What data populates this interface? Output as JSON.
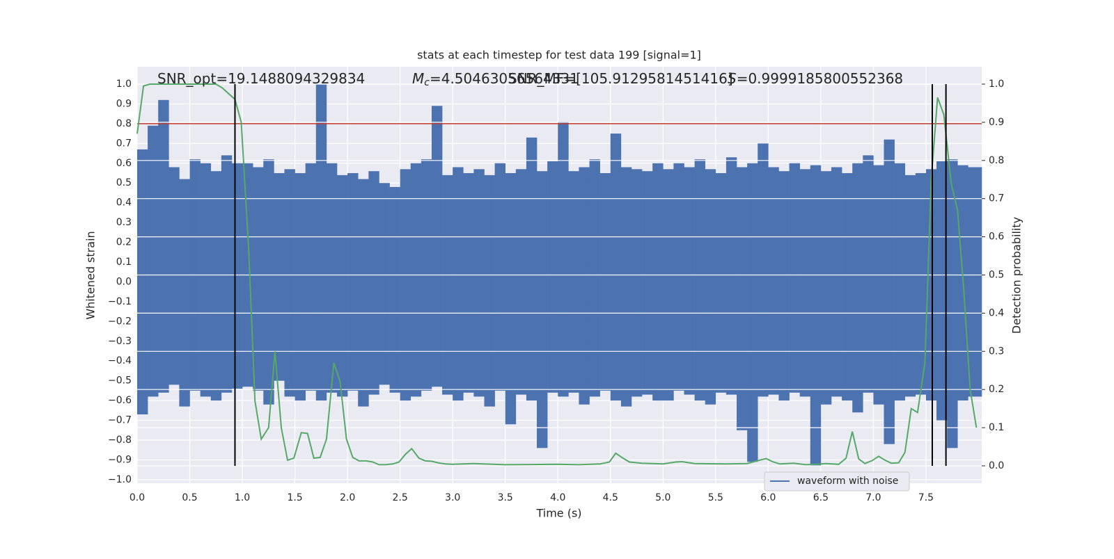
{
  "chart_data": {
    "type": "line",
    "title": "stats at each timestep for test data 199 [signal=1]",
    "xlabel": "Time (s)",
    "ylabel": "Whitened strain",
    "y2label": "Detection probability",
    "annotations": [
      {
        "text": "SNR_opt=19.1488094329834"
      },
      {
        "symbol": "M",
        "subscript": "c",
        "text": "=4.50463056564331"
      },
      {
        "text": "SNR_MF=[105.9129581451416]"
      },
      {
        "symbol": "S",
        "text": "=0.9999185800552368"
      }
    ],
    "xlim": [
      0,
      8.03
    ],
    "ylim": [
      -1.018,
      1.088
    ],
    "y2lim": [
      -0.0455,
      1.0455
    ],
    "grid": true,
    "legend": "lower right",
    "xticks": [
      {
        "value": 0,
        "label": "0.0"
      },
      0.5,
      {
        "value": 1,
        "label": "1.0"
      },
      1.5,
      {
        "value": 2,
        "label": "2.0"
      },
      2.5,
      {
        "value": 3,
        "label": "3.0"
      },
      3.5,
      {
        "value": 4,
        "label": "4.0"
      },
      4.5,
      {
        "value": 5,
        "label": "5.0"
      },
      5.5,
      {
        "value": 6,
        "label": "6.0"
      },
      6.5,
      {
        "value": 7,
        "label": "7.0"
      },
      7.5
    ],
    "yticks": [
      {
        "value": -1,
        "label": "−1.0"
      },
      {
        "value": -0.9,
        "label": "−0.9"
      },
      {
        "value": -0.8,
        "label": "−0.8"
      },
      {
        "value": -0.7,
        "label": "−0.7"
      },
      {
        "value": -0.6,
        "label": "−0.6"
      },
      {
        "value": -0.5,
        "label": "−0.5"
      },
      {
        "value": -0.4,
        "label": "−0.4"
      },
      {
        "value": -0.3,
        "label": "−0.3"
      },
      {
        "value": -0.2,
        "label": "−0.2"
      },
      {
        "value": -0.1,
        "label": "−0.1"
      },
      {
        "value": 0,
        "label": "0.0"
      },
      0.1,
      0.2,
      0.3,
      0.4,
      0.5,
      0.6,
      0.7,
      0.8,
      0.9,
      {
        "value": 1,
        "label": "1.0"
      }
    ],
    "y2ticks": [
      {
        "value": 0,
        "label": "0.0"
      },
      0.1,
      0.2,
      0.3,
      0.4,
      0.5,
      0.6,
      0.7,
      0.8,
      0.9,
      {
        "value": 1,
        "label": "1.0"
      }
    ],
    "series": [
      {
        "name": "waveform with noise",
        "color": "#4c72b0",
        "x": [
          0,
          0.1,
          0.2,
          0.3,
          0.4,
          0.5,
          0.6,
          0.7,
          0.8,
          0.9,
          1,
          1.1,
          1.2,
          1.3,
          1.4,
          1.5,
          1.6,
          1.7,
          1.8,
          1.9,
          2,
          2.1,
          2.2,
          2.3,
          2.4,
          2.5,
          2.6,
          2.7,
          2.8,
          2.9,
          3,
          3.1,
          3.2,
          3.3,
          3.4,
          3.5,
          3.6,
          3.7,
          3.8,
          3.9,
          4,
          4.1,
          4.2,
          4.3,
          4.4,
          4.5,
          4.6,
          4.7,
          4.8,
          4.9,
          5,
          5.1,
          5.2,
          5.3,
          5.4,
          5.5,
          5.6,
          5.7,
          5.8,
          5.9,
          6,
          6.1,
          6.2,
          6.3,
          6.4,
          6.5,
          6.6,
          6.7,
          6.8,
          6.9,
          7,
          7.1,
          7.2,
          7.3,
          7.4,
          7.5,
          7.6,
          7.7,
          7.8,
          7.9
        ],
        "max": [
          0.67,
          0.79,
          0.92,
          0.58,
          0.52,
          0.62,
          0.6,
          0.56,
          0.64,
          0.6,
          0.6,
          0.58,
          0.62,
          0.55,
          0.57,
          0.55,
          0.6,
          1.0,
          0.6,
          0.54,
          0.55,
          0.52,
          0.56,
          0.5,
          0.48,
          0.57,
          0.6,
          0.62,
          0.89,
          0.54,
          0.58,
          0.55,
          0.57,
          0.54,
          0.6,
          0.55,
          0.57,
          0.73,
          0.56,
          0.61,
          0.81,
          0.56,
          0.58,
          0.62,
          0.55,
          0.75,
          0.58,
          0.57,
          0.56,
          0.6,
          0.57,
          0.6,
          0.58,
          0.62,
          0.57,
          0.55,
          0.63,
          0.58,
          0.6,
          0.7,
          0.58,
          0.56,
          0.6,
          0.57,
          0.59,
          0.56,
          0.58,
          0.55,
          0.6,
          0.64,
          0.59,
          0.72,
          0.6,
          0.54,
          0.55,
          0.57,
          0.61,
          0.62,
          0.59,
          0.58
        ],
        "min": [
          -0.67,
          -0.58,
          -0.56,
          -0.52,
          -0.63,
          -0.55,
          -0.58,
          -0.6,
          -0.56,
          -0.54,
          -0.53,
          -0.55,
          -0.62,
          -0.5,
          -0.58,
          -0.6,
          -0.55,
          -0.6,
          -0.56,
          -0.58,
          -0.55,
          -0.63,
          -0.57,
          -0.52,
          -0.56,
          -0.6,
          -0.58,
          -0.55,
          -0.53,
          -0.57,
          -0.6,
          -0.56,
          -0.58,
          -0.63,
          -0.55,
          -0.72,
          -0.57,
          -0.6,
          -0.84,
          -0.56,
          -0.58,
          -0.56,
          -0.62,
          -0.58,
          -0.55,
          -0.6,
          -0.63,
          -0.58,
          -0.57,
          -0.6,
          -0.6,
          -0.55,
          -0.57,
          -0.6,
          -0.62,
          -0.56,
          -0.57,
          -0.75,
          -0.91,
          -0.58,
          -0.57,
          -0.6,
          -0.56,
          -0.58,
          -0.93,
          -0.62,
          -0.58,
          -0.6,
          -0.66,
          -0.56,
          -0.62,
          -0.82,
          -0.6,
          -0.58,
          -0.57,
          -0.6,
          -0.7,
          -0.84,
          -0.6,
          -0.58
        ]
      }
    ],
    "probability": {
      "axis": "y2",
      "color": "#55a868",
      "x": [
        0,
        0.06,
        0.12,
        0.75,
        0.81,
        0.87,
        0.93,
        0.99,
        1.06,
        1.12,
        1.18,
        1.25,
        1.31,
        1.37,
        1.43,
        1.49,
        1.56,
        1.62,
        1.68,
        1.74,
        1.8,
        1.87,
        1.93,
        1.99,
        2.05,
        2.11,
        2.18,
        2.24,
        2.3,
        2.36,
        2.43,
        2.49,
        2.55,
        2.61,
        2.68,
        2.74,
        2.8,
        2.86,
        2.93,
        3,
        3.2,
        3.5,
        4,
        4.2,
        4.4,
        4.49,
        4.55,
        4.62,
        4.68,
        4.8,
        5,
        5.12,
        5.18,
        5.3,
        5.6,
        5.8,
        5.92,
        5.98,
        6.05,
        6.11,
        6.24,
        6.36,
        6.5,
        6.55,
        6.67,
        6.74,
        6.8,
        6.86,
        6.92,
        6.99,
        7.05,
        7.11,
        7.17,
        7.24,
        7.3,
        7.36,
        7.42,
        7.49,
        7.55,
        7.61,
        7.67,
        7.74,
        7.8,
        7.86,
        7.92,
        7.98
      ],
      "values": [
        0.87,
        0.995,
        1.0,
        1.0,
        0.99,
        0.975,
        0.96,
        0.9,
        0.57,
        0.17,
        0.07,
        0.1,
        0.3,
        0.1,
        0.015,
        0.02,
        0.087,
        0.085,
        0.02,
        0.022,
        0.07,
        0.27,
        0.22,
        0.07,
        0.022,
        0.013,
        0.013,
        0.01,
        0.003,
        0.003,
        0.005,
        0.01,
        0.03,
        0.045,
        0.02,
        0.013,
        0.012,
        0.008,
        0.005,
        0.004,
        0.006,
        0.003,
        0.004,
        0.003,
        0.005,
        0.01,
        0.033,
        0.02,
        0.01,
        0.007,
        0.005,
        0.01,
        0.011,
        0.006,
        0.005,
        0.006,
        0.015,
        0.019,
        0.01,
        0.005,
        0.007,
        0.003,
        0.005,
        0.006,
        0.004,
        0.02,
        0.09,
        0.018,
        0.006,
        0.014,
        0.025,
        0.015,
        0.007,
        0.008,
        0.035,
        0.15,
        0.14,
        0.27,
        0.75,
        0.965,
        0.92,
        0.74,
        0.67,
        0.46,
        0.2,
        0.1
      ]
    },
    "hline": {
      "value": 0.8,
      "color": "#c0392b"
    },
    "vlines": {
      "x": [
        0.93,
        7.56,
        7.69
      ],
      "ymin": 0,
      "ymax": 1,
      "axis": "y2",
      "color": "#000000"
    }
  }
}
